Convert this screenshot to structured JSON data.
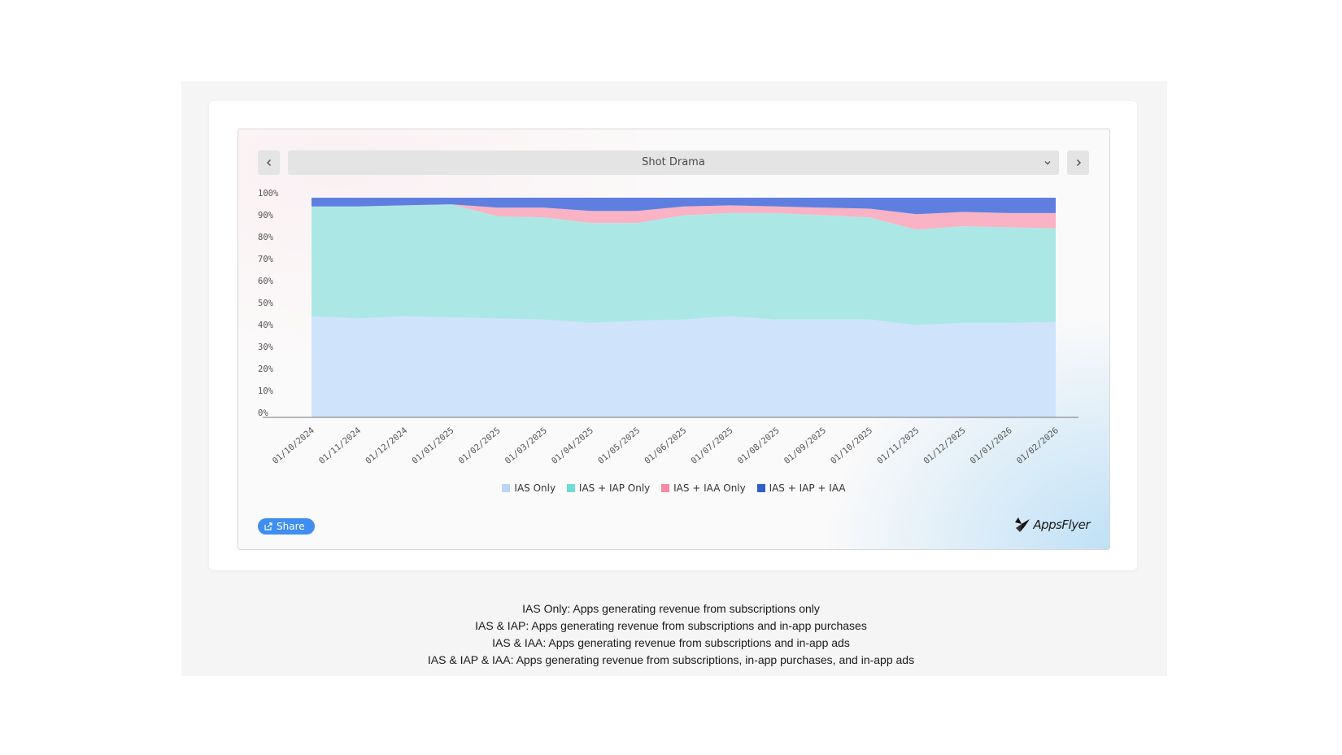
{
  "dropdown": {
    "selected": "Shot Drama"
  },
  "share_label": "Share",
  "logo_text": "AppsFlyer",
  "notes": [
    "IAS Only: Apps generating revenue from subscriptions only",
    "IAS & IAP: Apps generating revenue from subscriptions and in-app purchases",
    "IAS & IAA: Apps generating revenue from subscriptions and in-app ads",
    "IAS & IAP & IAA: Apps generating revenue from subscriptions, in-app purchases, and in-app ads"
  ],
  "colors": {
    "ias_only": "#cfe3fb",
    "ias_iap_only": "#abe8e5",
    "ias_iaa_only": "#f9b3c4",
    "ias_iap_iaa": "#5f7fe0",
    "legend_ias_only": "#b8d6f8",
    "legend_ias_iap_only": "#6fdcd6",
    "legend_ias_iaa_only": "#f48aa6",
    "legend_ias_iap_iaa": "#2f5fc8",
    "share_button": "#3f8ef0"
  },
  "chart_data": {
    "type": "area",
    "stacked": true,
    "categories": [
      "01/10/2024",
      "01/11/2024",
      "01/12/2024",
      "01/01/2025",
      "01/02/2025",
      "01/03/2025",
      "01/04/2025",
      "01/05/2025",
      "01/06/2025",
      "01/07/2025",
      "01/08/2025",
      "01/09/2025",
      "01/10/2025",
      "01/11/2025",
      "01/12/2025",
      "01/01/2026",
      "01/02/2026"
    ],
    "y_ticks": [
      "0%",
      "10%",
      "20%",
      "30%",
      "40%",
      "50%",
      "60%",
      "70%",
      "80%",
      "90%",
      "100%"
    ],
    "ylim": [
      0,
      100
    ],
    "series": [
      {
        "name": "IAS Only",
        "values": [
          46,
          45,
          46,
          45.5,
          45,
          44.5,
          43,
          44,
          44.5,
          46,
          44.5,
          44.5,
          44.5,
          42,
          43,
          43,
          43.5
        ]
      },
      {
        "name": "IAS + IAP Only",
        "values": [
          50,
          51,
          50.5,
          51.5,
          46.5,
          46.5,
          45.5,
          44.5,
          47.5,
          47,
          48.5,
          47.5,
          46.5,
          43.5,
          44,
          43.5,
          42.5
        ]
      },
      {
        "name": "IAS + IAA Only",
        "values": [
          0,
          0,
          0,
          0,
          4,
          4.5,
          5.5,
          5.5,
          4,
          3.5,
          3,
          3.5,
          4,
          7,
          6.5,
          6.5,
          7
        ]
      },
      {
        "name": "IAS + IAP + IAA",
        "values": [
          4,
          4,
          3.5,
          3,
          4.5,
          4.5,
          6,
          6,
          4,
          3.5,
          4,
          4.5,
          5,
          7.5,
          6.5,
          7,
          7
        ]
      }
    ],
    "legend_position": "bottom",
    "grid": false
  }
}
